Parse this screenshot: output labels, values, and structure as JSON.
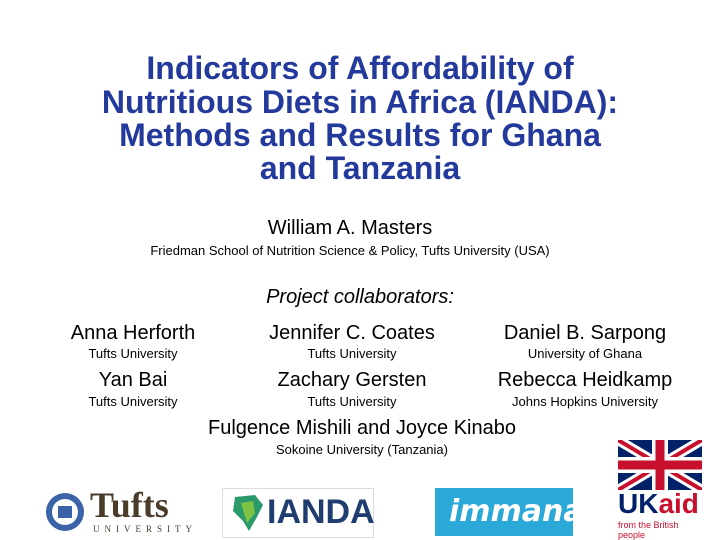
{
  "header": {
    "title_lines": [
      "Indicators of Affordability of",
      "Nutritious Diets in Africa (IANDA):",
      "Methods and Results for Ghana",
      "and Tanzania"
    ],
    "author": "William A. Masters",
    "affiliation": "Friedman School of Nutrition Science & Policy, Tufts University (USA)"
  },
  "collaborators": {
    "heading": "Project collaborators:",
    "people": [
      {
        "name": "Anna Herforth",
        "affiliation": "Tufts University"
      },
      {
        "name": "Jennifer C. Coates",
        "affiliation": "Tufts University"
      },
      {
        "name": "Daniel B. Sarpong",
        "affiliation": "University of Ghana"
      },
      {
        "name": "Yan Bai",
        "affiliation": "Tufts University"
      },
      {
        "name": "Zachary Gersten",
        "affiliation": "Tufts University"
      },
      {
        "name": "Rebecca Heidkamp",
        "affiliation": "Johns Hopkins University"
      }
    ],
    "extra": {
      "name": "Fulgence Mishili and Joyce Kinabo",
      "affiliation": "Sokoine University (Tanzania)"
    }
  },
  "logos": {
    "tufts": {
      "name": "Tufts",
      "sub": "UNIVERSITY"
    },
    "ianda": {
      "name": "IANDA"
    },
    "immana": {
      "name": "immana"
    },
    "ukaid": {
      "uk": "UK",
      "aid": "aid",
      "sub": "from the British people"
    }
  }
}
